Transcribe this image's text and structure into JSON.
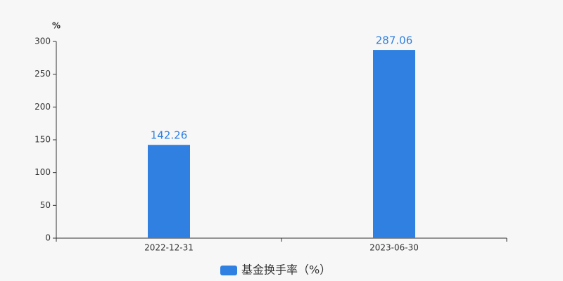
{
  "chart_data": {
    "type": "bar",
    "y_label": "%",
    "categories": [
      "2022-12-31",
      "2023-06-30"
    ],
    "series": [
      {
        "name": "基金换手率（%）",
        "color": "#2f80e0",
        "values": [
          142.26,
          287.06
        ]
      }
    ],
    "ylim": [
      0,
      300
    ],
    "yticks": [
      0,
      50,
      100,
      150,
      200,
      250,
      300
    ],
    "grid": false,
    "legend": "bottom"
  }
}
